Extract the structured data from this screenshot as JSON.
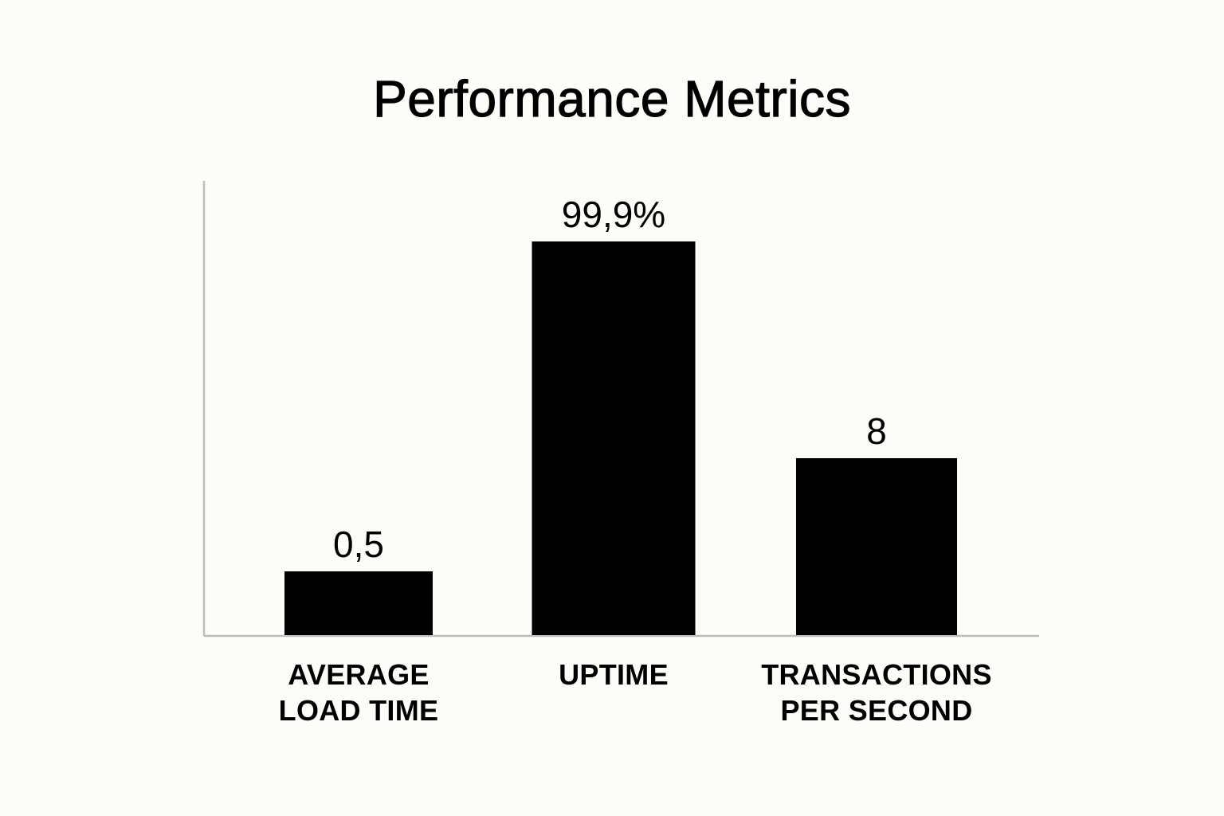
{
  "chart_data": {
    "type": "bar",
    "title": "Performance Metrics",
    "xlabel": "",
    "ylabel": "",
    "grid": false,
    "legend": "none",
    "categories": [
      [
        "AVERAGE",
        "LOAD TIME"
      ],
      [
        "UPTIME"
      ],
      [
        "TRANSACTIONS",
        "PER SECOND"
      ]
    ],
    "values": [
      0.5,
      99.9,
      8
    ],
    "value_labels": [
      "0,5",
      "99,9%",
      "8"
    ],
    "bar_color": "#000000",
    "axis_color": "#bdbdbd"
  }
}
